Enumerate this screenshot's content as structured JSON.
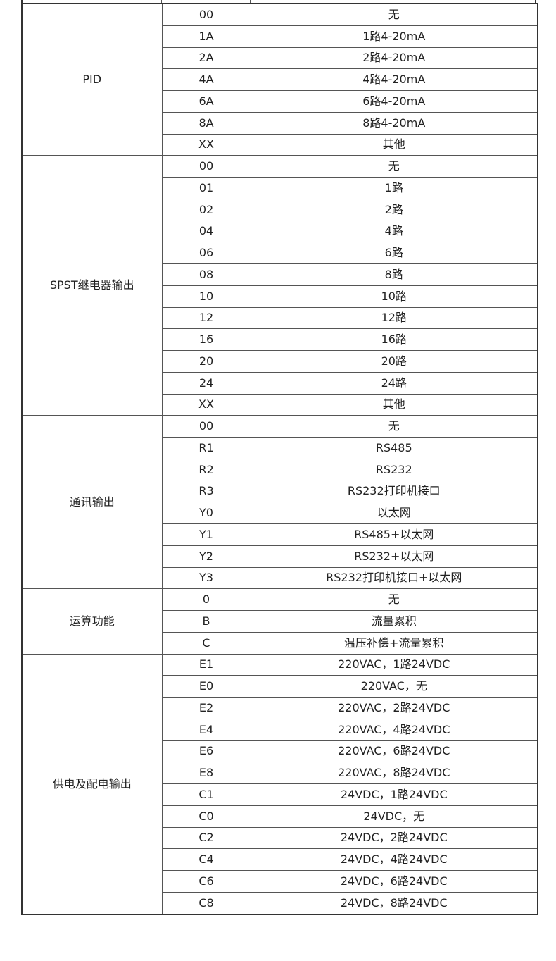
{
  "groups": [
    {
      "name": "PID",
      "rows": [
        [
          "00",
          "无"
        ],
        [
          "1A",
          "1路4-20mA"
        ],
        [
          "2A",
          "2路4-20mA"
        ],
        [
          "4A",
          "4路4-20mA"
        ],
        [
          "6A",
          "6路4-20mA"
        ],
        [
          "8A",
          "8路4-20mA"
        ],
        [
          "XX",
          "其他"
        ]
      ]
    },
    {
      "name": "SPST继电器输出",
      "rows": [
        [
          "00",
          "无"
        ],
        [
          "01",
          "1路"
        ],
        [
          "02",
          "2路"
        ],
        [
          "04",
          "4路"
        ],
        [
          "06",
          "6路"
        ],
        [
          "08",
          "8路"
        ],
        [
          "10",
          "10路"
        ],
        [
          "12",
          "12路"
        ],
        [
          "16",
          "16路"
        ],
        [
          "20",
          "20路"
        ],
        [
          "24",
          "24路"
        ],
        [
          "XX",
          "其他"
        ]
      ]
    },
    {
      "name": "通讯输出",
      "rows": [
        [
          "00",
          "无"
        ],
        [
          "R1",
          "RS485"
        ],
        [
          "R2",
          "RS232"
        ],
        [
          "R3",
          "RS232打印机接口"
        ],
        [
          "Y0",
          "以太网"
        ],
        [
          "Y1",
          "RS485+以太网"
        ],
        [
          "Y2",
          "RS232+以太网"
        ],
        [
          "Y3",
          "RS232打印机接口+以太网"
        ]
      ]
    },
    {
      "name": "运算功能",
      "rows": [
        [
          "0",
          "无"
        ],
        [
          "B",
          "流量累积"
        ],
        [
          "C",
          "温压补偿+流量累积"
        ]
      ]
    },
    {
      "name": "供电及配电输出",
      "rows": [
        [
          "E1",
          "220VAC，1路24VDC"
        ],
        [
          "E0",
          "220VAC，无"
        ],
        [
          "E2",
          "220VAC，2路24VDC"
        ],
        [
          "E4",
          "220VAC，4路24VDC"
        ],
        [
          "E6",
          "220VAC，6路24VDC"
        ],
        [
          "E8",
          "220VAC，8路24VDC"
        ],
        [
          "C1",
          "24VDC，1路24VDC"
        ],
        [
          "C0",
          "24VDC，无"
        ],
        [
          "C2",
          "24VDC，2路24VDC"
        ],
        [
          "C4",
          "24VDC，4路24VDC"
        ],
        [
          "C6",
          "24VDC，6路24VDC"
        ],
        [
          "C8",
          "24VDC，8路24VDC"
        ]
      ]
    }
  ]
}
